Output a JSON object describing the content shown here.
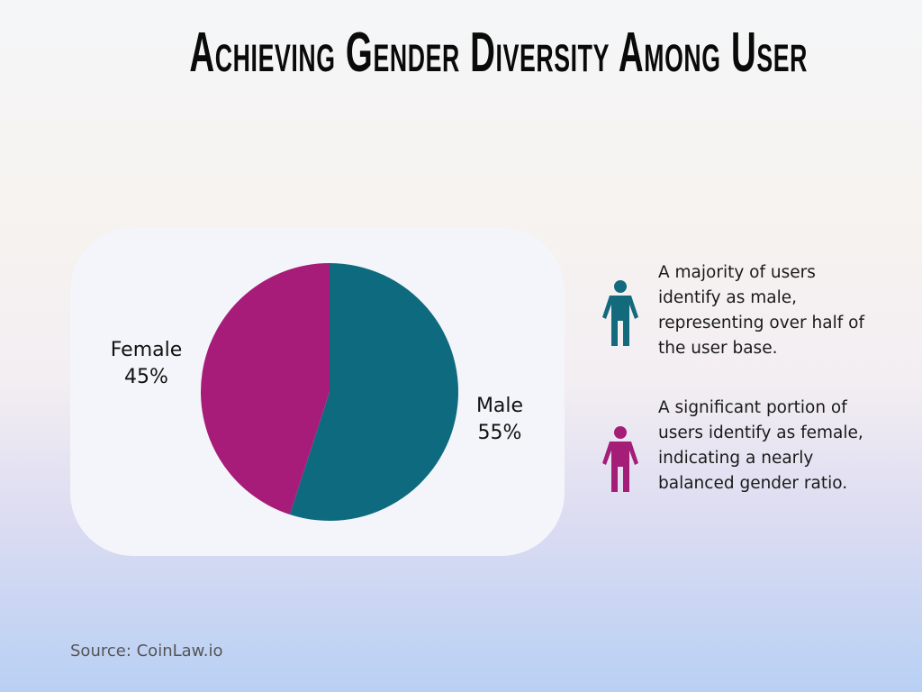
{
  "title": "Achieving Gender Diversity Among User",
  "chart_data": {
    "type": "pie",
    "title": "Achieving Gender Diversity Among User",
    "slices": [
      {
        "label": "Male",
        "value": 55,
        "value_label": "55%",
        "color": "#0e6a7e"
      },
      {
        "label": "Female",
        "value": 45,
        "value_label": "45%",
        "color": "#a71c78"
      }
    ],
    "start": "top",
    "direction": "clockwise"
  },
  "legend": [
    {
      "icon": "person-icon",
      "color": "#136a7d",
      "text": "A majority of users identify as male, representing over half of the user base."
    },
    {
      "icon": "person-icon",
      "color": "#a41e78",
      "text": "A significant portion of users identify as female, indicating a nearly balanced gender ratio."
    }
  ],
  "source": "Source: CoinLaw.io"
}
